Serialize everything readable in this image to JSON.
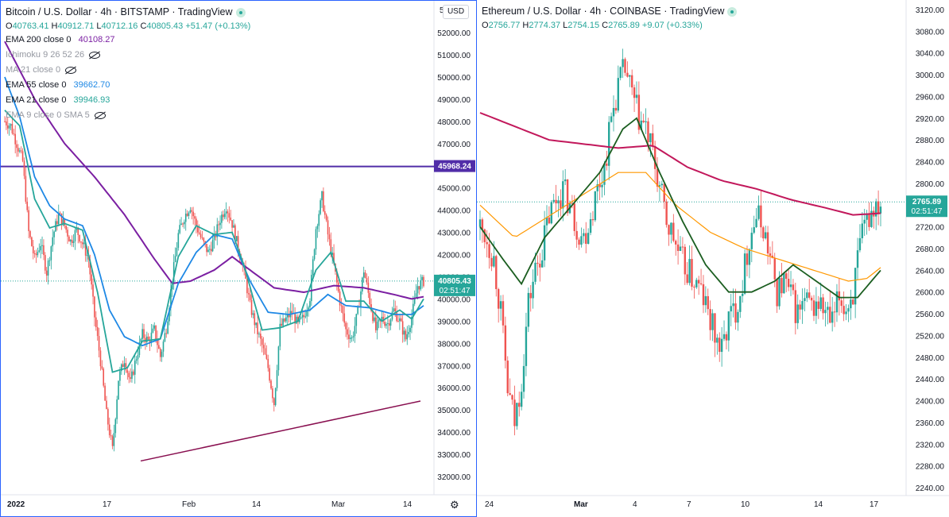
{
  "left": {
    "title": "Bitcoin / U.S. Dollar · 4h · BITSTAMP · TradingView",
    "ohlc": [
      {
        "k": "O",
        "v": "40763.41"
      },
      {
        "k": "H",
        "v": "40912.71"
      },
      {
        "k": "L",
        "v": "40712.16"
      },
      {
        "k": "C",
        "v": "40805.43"
      },
      {
        "k": "",
        "v": "+51.47 (+0.13%)"
      }
    ],
    "indicators": [
      {
        "label": "EMA 200 close 0",
        "value": "40108.27",
        "color": "#7b1fa2",
        "muted": false
      },
      {
        "label": "Ichimoku 9 26 52 26",
        "value": "",
        "color": "",
        "muted": true,
        "eye": true
      },
      {
        "label": "MA 21 close 0",
        "value": "",
        "color": "",
        "muted": true,
        "eye": true
      },
      {
        "label": "EMA 55 close 0",
        "value": "39662.70",
        "color": "#1e88e5",
        "muted": false
      },
      {
        "label": "EMA 21 close 0",
        "value": "39946.93",
        "color": "#26a69a",
        "muted": false
      },
      {
        "label": "EMA 9 close 0 SMA 5",
        "value": "",
        "color": "",
        "muted": true,
        "eye": true
      }
    ],
    "currency_button": "USD",
    "price_tags": {
      "resistance": "45968.24",
      "last": "40805.43",
      "countdown": "02:51:47",
      "top_partial": "5"
    },
    "settings_icon": "gear-icon"
  },
  "right": {
    "title": "Ethereum / U.S. Dollar · 4h · COINBASE · TradingView",
    "ohlc": [
      {
        "k": "O",
        "v": "2756.77"
      },
      {
        "k": "H",
        "v": "2774.37"
      },
      {
        "k": "L",
        "v": "2754.15"
      },
      {
        "k": "C",
        "v": "2765.89"
      },
      {
        "k": "",
        "v": "+9.07 (+0.33%)"
      }
    ],
    "price_tags": {
      "last": "2765.89",
      "countdown": "02:51:47"
    }
  },
  "chart_data": [
    {
      "type": "candlestick",
      "title": "Bitcoin / U.S. Dollar · 4h · BITSTAMP · TradingView",
      "y_ticks": [
        "52000.00",
        "51000.00",
        "50000.00",
        "49000.00",
        "48000.00",
        "47000.00",
        "46000.00",
        "45000.00",
        "44000.00",
        "43000.00",
        "42000.00",
        "41000.00",
        "40000.00",
        "39000.00",
        "38000.00",
        "37000.00",
        "36000.00",
        "35000.00",
        "34000.00",
        "33000.00",
        "32000.00"
      ],
      "x_ticks": [
        "2022",
        "17",
        "Feb",
        "14",
        "Mar",
        "14"
      ],
      "colors": {
        "up": "#26a69a",
        "down": "#ef5350",
        "ema200": "#7b1fa2",
        "ema55": "#1e88e5",
        "ema21": "#26a69a",
        "horizontal_line": "#512da8",
        "trendline": "#880e4f"
      },
      "horizontal_line": 45968.24,
      "trendline": [
        {
          "date": "Jan 22",
          "price": 32700
        },
        {
          "date": "Mar 17",
          "price": 35400
        }
      ],
      "path_points": [
        [
          0,
          48000
        ],
        [
          4,
          47800
        ],
        [
          8,
          47000
        ],
        [
          12,
          46200
        ],
        [
          16,
          43000
        ],
        [
          20,
          41800
        ],
        [
          24,
          42500
        ],
        [
          28,
          41200
        ],
        [
          32,
          42800
        ],
        [
          36,
          43800
        ],
        [
          40,
          43300
        ],
        [
          44,
          42600
        ],
        [
          48,
          43100
        ],
        [
          52,
          42500
        ],
        [
          56,
          41800
        ],
        [
          60,
          39200
        ],
        [
          64,
          37200
        ],
        [
          68,
          34800
        ],
        [
          72,
          33200
        ],
        [
          76,
          36400
        ],
        [
          80,
          37300
        ],
        [
          84,
          36200
        ],
        [
          88,
          37400
        ],
        [
          92,
          38400
        ],
        [
          96,
          38100
        ],
        [
          100,
          38600
        ],
        [
          104,
          37400
        ],
        [
          108,
          38700
        ],
        [
          112,
          40900
        ],
        [
          116,
          42900
        ],
        [
          120,
          43700
        ],
        [
          124,
          44200
        ],
        [
          128,
          43300
        ],
        [
          132,
          42600
        ],
        [
          136,
          42100
        ],
        [
          140,
          42700
        ],
        [
          144,
          43600
        ],
        [
          148,
          44200
        ],
        [
          152,
          43400
        ],
        [
          156,
          42300
        ],
        [
          160,
          41200
        ],
        [
          164,
          39700
        ],
        [
          168,
          38700
        ],
        [
          172,
          37900
        ],
        [
          176,
          36900
        ],
        [
          180,
          35300
        ],
        [
          184,
          38700
        ],
        [
          188,
          39100
        ],
        [
          192,
          39400
        ],
        [
          196,
          38800
        ],
        [
          200,
          39200
        ],
        [
          204,
          40100
        ],
        [
          208,
          43200
        ],
        [
          212,
          44600
        ],
        [
          216,
          42900
        ],
        [
          220,
          41500
        ],
        [
          224,
          39900
        ],
        [
          228,
          38600
        ],
        [
          232,
          38200
        ],
        [
          236,
          39400
        ],
        [
          240,
          41300
        ],
        [
          244,
          39900
        ],
        [
          248,
          38600
        ],
        [
          252,
          39100
        ],
        [
          256,
          38900
        ],
        [
          260,
          39500
        ],
        [
          264,
          39000
        ],
        [
          268,
          38200
        ],
        [
          272,
          39200
        ],
        [
          276,
          40600
        ],
        [
          280,
          40800
        ]
      ],
      "indicator_points": {
        "ema200": [
          [
            0,
            51600
          ],
          [
            20,
            49000
          ],
          [
            40,
            47000
          ],
          [
            60,
            45500
          ],
          [
            80,
            43800
          ],
          [
            100,
            41800
          ],
          [
            112,
            40700
          ],
          [
            124,
            40800
          ],
          [
            140,
            41300
          ],
          [
            152,
            41900
          ],
          [
            164,
            41300
          ],
          [
            180,
            40500
          ],
          [
            200,
            40300
          ],
          [
            220,
            40600
          ],
          [
            240,
            40500
          ],
          [
            260,
            40200
          ],
          [
            272,
            40000
          ],
          [
            280,
            40100
          ]
        ],
        "ema55": [
          [
            0,
            50000
          ],
          [
            10,
            48200
          ],
          [
            20,
            45500
          ],
          [
            30,
            44200
          ],
          [
            40,
            43600
          ],
          [
            52,
            43300
          ],
          [
            60,
            42000
          ],
          [
            70,
            39500
          ],
          [
            80,
            38300
          ],
          [
            92,
            37900
          ],
          [
            104,
            38200
          ],
          [
            116,
            40700
          ],
          [
            128,
            42100
          ],
          [
            140,
            42900
          ],
          [
            152,
            42700
          ],
          [
            164,
            40800
          ],
          [
            176,
            39400
          ],
          [
            190,
            39300
          ],
          [
            204,
            39500
          ],
          [
            216,
            40200
          ],
          [
            228,
            39700
          ],
          [
            244,
            39600
          ],
          [
            260,
            39300
          ],
          [
            272,
            39300
          ],
          [
            280,
            39700
          ]
        ],
        "ema21": [
          [
            0,
            48500
          ],
          [
            10,
            47800
          ],
          [
            20,
            44500
          ],
          [
            30,
            43200
          ],
          [
            40,
            43400
          ],
          [
            52,
            43100
          ],
          [
            62,
            40300
          ],
          [
            72,
            36700
          ],
          [
            82,
            36900
          ],
          [
            92,
            38100
          ],
          [
            104,
            38200
          ],
          [
            116,
            41900
          ],
          [
            128,
            43300
          ],
          [
            140,
            42900
          ],
          [
            152,
            43000
          ],
          [
            160,
            41500
          ],
          [
            172,
            38600
          ],
          [
            184,
            38700
          ],
          [
            196,
            39000
          ],
          [
            208,
            41300
          ],
          [
            218,
            42100
          ],
          [
            228,
            39900
          ],
          [
            240,
            39900
          ],
          [
            252,
            39000
          ],
          [
            264,
            39500
          ],
          [
            272,
            39100
          ],
          [
            280,
            40000
          ]
        ]
      },
      "last": 40805.43,
      "ohlc": {
        "open": 40763.41,
        "high": 40912.71,
        "low": 40712.16,
        "close": 40805.43,
        "change": 51.47,
        "change_pct": 0.13
      },
      "indicators": {
        "ema200": 40108.27,
        "ema55": 39662.7,
        "ema21": 39946.93
      }
    },
    {
      "type": "candlestick",
      "title": "Ethereum / U.S. Dollar · 4h · COINBASE · TradingView",
      "y_ticks": [
        "3120.00",
        "3080.00",
        "3040.00",
        "3000.00",
        "2960.00",
        "2920.00",
        "2880.00",
        "2840.00",
        "2800.00",
        "2760.00",
        "2720.00",
        "2680.00",
        "2640.00",
        "2600.00",
        "2560.00",
        "2520.00",
        "2480.00",
        "2440.00",
        "2400.00",
        "2360.00",
        "2320.00",
        "2280.00",
        "2240.00"
      ],
      "x_ticks": [
        "24",
        "Mar",
        "4",
        "7",
        "10",
        "14",
        "17"
      ],
      "colors": {
        "up": "#26a69a",
        "down": "#ef5350",
        "ma_crimson": "#c2185b",
        "ma_orange": "#ff9800",
        "ma_green": "#1b5e20"
      },
      "path_points": [
        [
          0,
          2720
        ],
        [
          3,
          2700
        ],
        [
          6,
          2660
        ],
        [
          9,
          2560
        ],
        [
          12,
          2420
        ],
        [
          15,
          2360
        ],
        [
          18,
          2440
        ],
        [
          21,
          2580
        ],
        [
          24,
          2640
        ],
        [
          27,
          2680
        ],
        [
          30,
          2740
        ],
        [
          33,
          2770
        ],
        [
          36,
          2790
        ],
        [
          39,
          2760
        ],
        [
          42,
          2720
        ],
        [
          45,
          2700
        ],
        [
          48,
          2740
        ],
        [
          51,
          2790
        ],
        [
          54,
          2830
        ],
        [
          57,
          2920
        ],
        [
          60,
          2980
        ],
        [
          63,
          3010
        ],
        [
          66,
          2960
        ],
        [
          69,
          2920
        ],
        [
          72,
          2900
        ],
        [
          75,
          2850
        ],
        [
          78,
          2790
        ],
        [
          81,
          2730
        ],
        [
          84,
          2700
        ],
        [
          87,
          2660
        ],
        [
          90,
          2640
        ],
        [
          93,
          2620
        ],
        [
          96,
          2600
        ],
        [
          99,
          2560
        ],
        [
          102,
          2520
        ],
        [
          105,
          2490
        ],
        [
          108,
          2550
        ],
        [
          111,
          2570
        ],
        [
          114,
          2620
        ],
        [
          117,
          2700
        ],
        [
          120,
          2740
        ],
        [
          123,
          2720
        ],
        [
          126,
          2660
        ],
        [
          129,
          2600
        ],
        [
          132,
          2620
        ],
        [
          135,
          2590
        ],
        [
          138,
          2560
        ],
        [
          141,
          2580
        ],
        [
          144,
          2570
        ],
        [
          147,
          2580
        ],
        [
          150,
          2560
        ],
        [
          153,
          2540
        ],
        [
          156,
          2590
        ],
        [
          159,
          2570
        ],
        [
          162,
          2600
        ],
        [
          165,
          2680
        ],
        [
          168,
          2730
        ],
        [
          171,
          2760
        ],
        [
          174,
          2770
        ]
      ],
      "indicator_points": {
        "ma_crimson": [
          [
            0,
            2930
          ],
          [
            30,
            2880
          ],
          [
            60,
            2865
          ],
          [
            75,
            2870
          ],
          [
            90,
            2830
          ],
          [
            105,
            2805
          ],
          [
            120,
            2790
          ],
          [
            135,
            2770
          ],
          [
            150,
            2755
          ],
          [
            162,
            2742
          ],
          [
            174,
            2745
          ]
        ],
        "ma_orange": [
          [
            0,
            2760
          ],
          [
            15,
            2700
          ],
          [
            30,
            2740
          ],
          [
            45,
            2780
          ],
          [
            60,
            2820
          ],
          [
            72,
            2820
          ],
          [
            85,
            2760
          ],
          [
            100,
            2710
          ],
          [
            115,
            2680
          ],
          [
            130,
            2660
          ],
          [
            145,
            2640
          ],
          [
            160,
            2620
          ],
          [
            168,
            2625
          ],
          [
            174,
            2645
          ]
        ],
        "ma_green": [
          [
            0,
            2720
          ],
          [
            10,
            2660
          ],
          [
            18,
            2615
          ],
          [
            28,
            2700
          ],
          [
            40,
            2760
          ],
          [
            52,
            2820
          ],
          [
            62,
            2900
          ],
          [
            68,
            2920
          ],
          [
            78,
            2820
          ],
          [
            88,
            2730
          ],
          [
            98,
            2650
          ],
          [
            108,
            2600
          ],
          [
            118,
            2600
          ],
          [
            128,
            2620
          ],
          [
            136,
            2650
          ],
          [
            146,
            2620
          ],
          [
            156,
            2590
          ],
          [
            164,
            2590
          ],
          [
            174,
            2640
          ]
        ]
      },
      "last": 2765.89,
      "ohlc": {
        "open": 2756.77,
        "high": 2774.37,
        "low": 2754.15,
        "close": 2765.89,
        "change": 9.07,
        "change_pct": 0.33
      }
    }
  ]
}
